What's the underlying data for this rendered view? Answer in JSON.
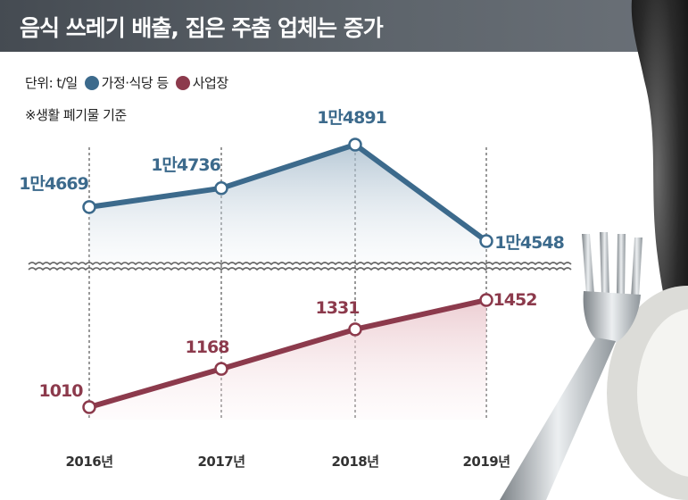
{
  "title": "음식 쓰레기 배출, 집은 주춤 업체는 증가",
  "legend": {
    "unit": "단위: t/일",
    "items": [
      {
        "label": "가정·식당 등",
        "color": "#3c6a8c"
      },
      {
        "label": "사업장",
        "color": "#8c3a4c"
      }
    ]
  },
  "note": "※생활 폐기물 기준",
  "chart_data": {
    "type": "line",
    "categories": [
      "2016년",
      "2017년",
      "2018년",
      "2019년"
    ],
    "series": [
      {
        "name": "가정·식당 등",
        "values": [
          14669,
          14736,
          14891,
          14548
        ],
        "labels": [
          "1만4669",
          "1만4736",
          "1만4891",
          "1만4548"
        ],
        "color": "#3c6a8c"
      },
      {
        "name": "사업장",
        "values": [
          1010,
          1168,
          1331,
          1452
        ],
        "labels": [
          "1010",
          "1168",
          "1331",
          "1452"
        ],
        "color": "#8c3a4c"
      }
    ],
    "axis_break": true,
    "grid": false
  }
}
